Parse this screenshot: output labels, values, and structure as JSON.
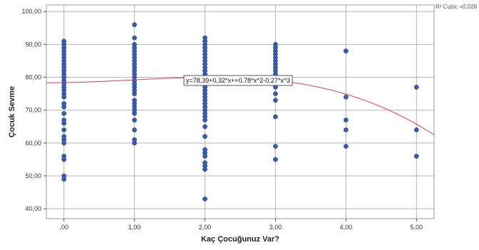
{
  "chart_data": {
    "type": "scatter",
    "xlabel": "Kaç Çocuğunuz Var?",
    "ylabel": "Çocuk Sevme",
    "xlim": [
      -0.25,
      5.25
    ],
    "ylim": [
      37,
      102
    ],
    "x_ticks": [
      0,
      1,
      2,
      3,
      4,
      5
    ],
    "x_tick_labels": [
      ",00",
      "1,00",
      "2,00",
      "3,00",
      "4,00",
      "5,00"
    ],
    "y_ticks": [
      40,
      50,
      60,
      70,
      80,
      90,
      100
    ],
    "y_tick_labels": [
      "40,00",
      "50,00",
      "60,00",
      "70,00",
      "80,00",
      "90,00",
      "100,00"
    ],
    "grid": "vertical at x ticks, horizontal at y ticks",
    "legend_label": "R² Cubic =0,028",
    "legend_position": "top-right",
    "fit": {
      "type": "cubic",
      "coefficients": [
        78.39,
        0.32,
        0.78,
        -0.27
      ],
      "label": "y=78,39+0,32*x++0.78*x^2-0,27*x^3",
      "color": "#e8395c"
    },
    "point_color": "#3a5ca8",
    "points": [
      {
        "x": 0,
        "y": [
          49,
          50,
          55,
          56,
          60,
          61,
          62,
          64,
          66,
          67,
          69,
          71,
          72,
          74,
          75,
          76,
          77,
          78,
          79,
          80,
          81,
          82,
          83,
          84,
          85,
          86,
          87,
          88,
          89,
          90,
          91
        ]
      },
      {
        "x": 1,
        "y": [
          60,
          61,
          64,
          67,
          69,
          70,
          71,
          72,
          73,
          75,
          76,
          77,
          78,
          79,
          80,
          81,
          82,
          83,
          84,
          85,
          86,
          87,
          88,
          89,
          90,
          92,
          96
        ]
      },
      {
        "x": 2,
        "y": [
          43,
          52,
          53,
          54,
          56,
          57,
          58,
          62,
          65,
          67,
          68,
          69,
          70,
          71,
          72,
          73,
          74,
          75,
          76,
          77,
          78,
          79,
          80,
          81,
          82,
          83,
          84,
          85,
          86,
          87,
          88,
          89,
          90,
          91,
          92
        ]
      },
      {
        "x": 3,
        "y": [
          55,
          59,
          68,
          73,
          75,
          77,
          78,
          79,
          80,
          81,
          82,
          83,
          84,
          85,
          86,
          87,
          88,
          89,
          90
        ]
      },
      {
        "x": 4,
        "y": [
          59,
          64,
          67,
          74,
          88
        ]
      },
      {
        "x": 5,
        "y": [
          56,
          64,
          77
        ]
      }
    ]
  }
}
